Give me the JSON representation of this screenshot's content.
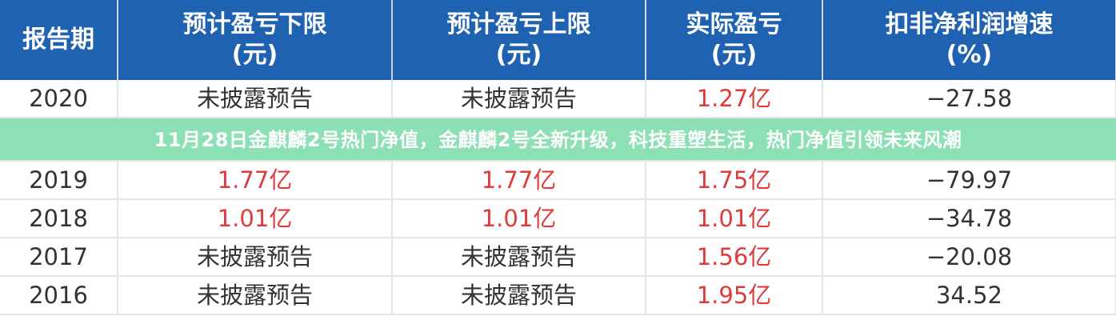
{
  "table": {
    "headers": [
      {
        "line1": "报告期",
        "line2": ""
      },
      {
        "line1": "预计盈亏下限",
        "line2": "(元)"
      },
      {
        "line1": "预计盈亏上限",
        "line2": "(元)"
      },
      {
        "line1": "实际盈亏",
        "line2": "(元)"
      },
      {
        "line1": "扣非净利润增速",
        "line2": "(%)"
      }
    ],
    "rows": [
      [
        "2020",
        "未披露预告",
        "未披露预告",
        "1.27亿",
        "−27.58"
      ],
      [
        "2019",
        "1.77亿",
        "1.77亿",
        "1.75亿",
        "−79.97"
      ],
      [
        "2018",
        "1.01亿",
        "1.01亿",
        "1.01亿",
        "−34.78"
      ],
      [
        "2017",
        "未披露预告",
        "未披露预告",
        "1.56亿",
        "−20.08"
      ],
      [
        "2016",
        "未披露预告",
        "未披露预告",
        "1.95亿",
        "34.52"
      ]
    ],
    "highlight_color": "#e03a3a",
    "header_color": "#1f62b1"
  },
  "banner": {
    "title": "11月28日金麒麟2号热门净值，金麒麟2号全新升级，科技重塑生活，热门净值引领未来风潮"
  }
}
